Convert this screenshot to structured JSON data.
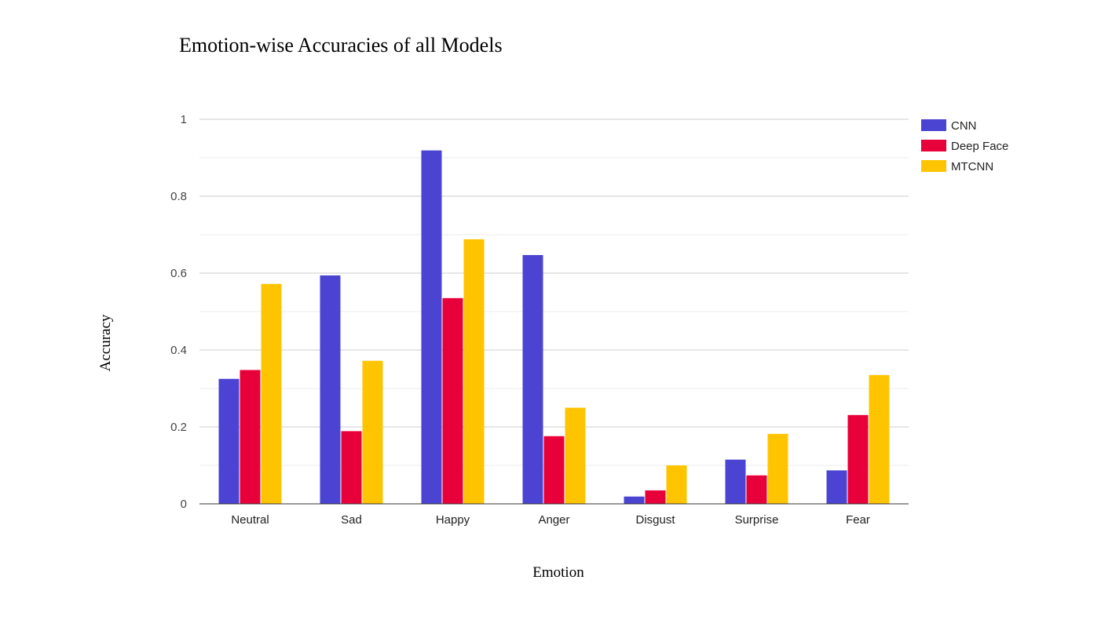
{
  "chart_data": {
    "type": "bar",
    "title": "Emotion-wise Accuracies of all Models",
    "xlabel": "Emotion",
    "ylabel": "Accuracy",
    "categories": [
      "Neutral",
      "Sad",
      "Happy",
      "Anger",
      "Disgust",
      "Surprise",
      "Fear"
    ],
    "series": [
      {
        "name": "CNN",
        "color": "#4b43d2",
        "values": [
          0.325,
          0.594,
          0.919,
          0.647,
          0.019,
          0.115,
          0.087
        ]
      },
      {
        "name": "Deep Face",
        "color": "#e8003a",
        "values": [
          0.348,
          0.189,
          0.535,
          0.176,
          0.035,
          0.074,
          0.231
        ]
      },
      {
        "name": "MTCNN",
        "color": "#ffc400",
        "values": [
          0.572,
          0.372,
          0.688,
          0.25,
          0.1,
          0.182,
          0.335
        ]
      }
    ],
    "ylim": [
      0,
      1
    ],
    "yticks": [
      "0",
      "0.2",
      "0.4",
      "0.6",
      "0.8",
      "1"
    ],
    "ytick_values": [
      0,
      0.2,
      0.4,
      0.6,
      0.8,
      1.0
    ],
    "minor_gridlines": true,
    "legend": "right"
  }
}
